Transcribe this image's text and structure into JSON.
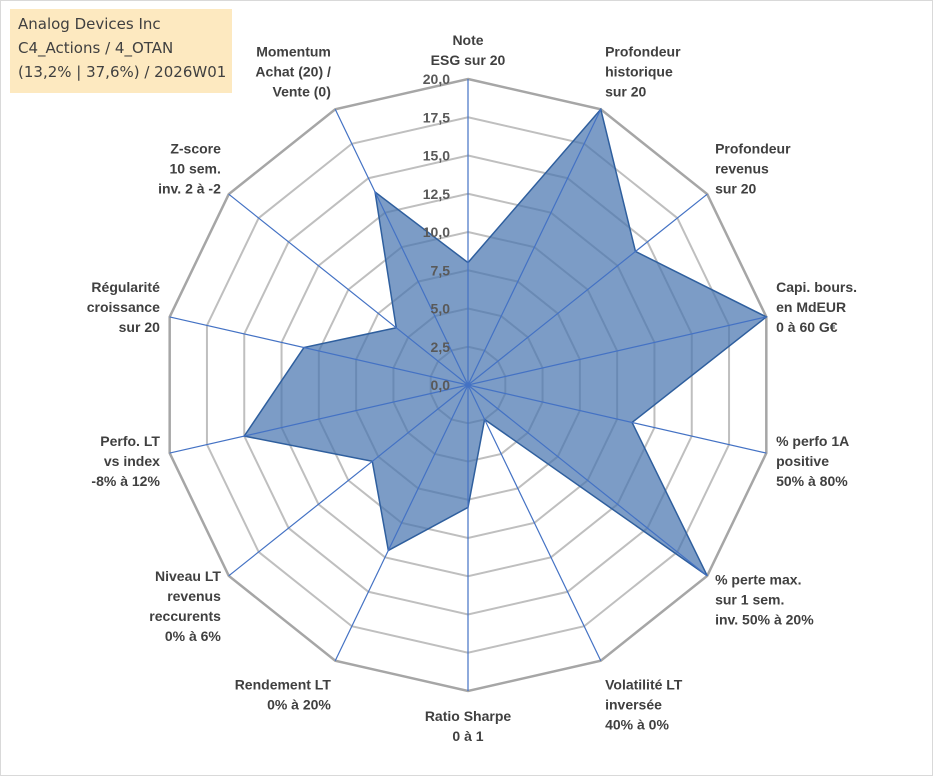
{
  "info_box": {
    "company": "Analog Devices Inc",
    "category": "C4_Actions / 4_OTAN",
    "stats": "(13,2% | 37,6%) / 2026W01"
  },
  "colors": {
    "fill": "#4a76b0",
    "stroke": "#2f5f9e",
    "axis": "#4472c4",
    "grid": "#bfbfbf",
    "grid_outer": "#a6a6a6",
    "info_bg": "#fde9c0"
  },
  "chart_data": {
    "type": "radar",
    "title": "",
    "rmin": 0,
    "rmax": 20,
    "tick_step": 2.5,
    "tick_labels": [
      "0,0",
      "2,5",
      "5,0",
      "7,5",
      "10,0",
      "12,5",
      "15,0",
      "17,5",
      "20,0"
    ],
    "axes": [
      {
        "lines": [
          "Note",
          "ESG sur 20"
        ],
        "value": 8
      },
      {
        "lines": [
          "Profondeur",
          "historique",
          "sur 20"
        ],
        "value": 20
      },
      {
        "lines": [
          "Profondeur",
          "revenus",
          "sur 20"
        ],
        "value": 14
      },
      {
        "lines": [
          "Capi. bours.",
          "en MdEUR",
          "0 à 60 G€"
        ],
        "value": 20
      },
      {
        "lines": [
          "% perfo 1A",
          "positive",
          "50% à 80%"
        ],
        "value": 11
      },
      {
        "lines": [
          "% perte max.",
          "sur 1 sem.",
          "inv. 50% à 20%"
        ],
        "value": 20
      },
      {
        "lines": [
          "Volatilité LT",
          "inversée",
          "40% à 0%"
        ],
        "value": 2.5
      },
      {
        "lines": [
          "Ratio Sharpe",
          "0 à 1"
        ],
        "value": 8
      },
      {
        "lines": [
          "Rendement LT",
          "0% à 20%"
        ],
        "value": 12
      },
      {
        "lines": [
          "Niveau LT",
          "revenus",
          "reccurents",
          "0% à 6%"
        ],
        "value": 8
      },
      {
        "lines": [
          "Perfo. LT",
          "vs index",
          "-8% à 12%"
        ],
        "value": 15
      },
      {
        "lines": [
          "Régularité",
          "croissance",
          "sur 20"
        ],
        "value": 11
      },
      {
        "lines": [
          "Z-score",
          "10 sem.",
          "inv. 2 à -2"
        ],
        "value": 6
      },
      {
        "lines": [
          "Momentum",
          "Achat (20) /",
          "Vente (0)"
        ],
        "value": 14
      }
    ]
  }
}
